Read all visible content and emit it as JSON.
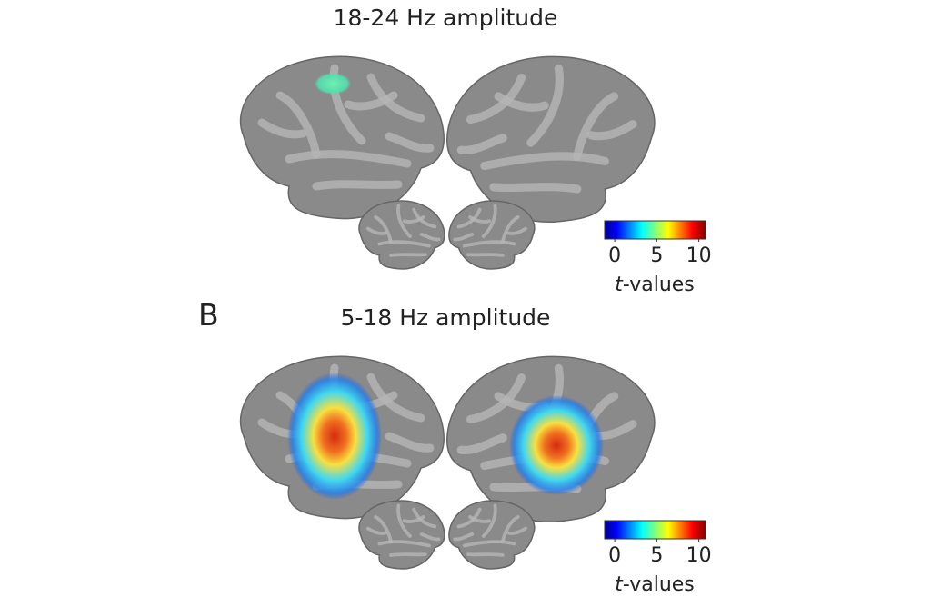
{
  "panels": [
    {
      "title": "18-24 Hz amplitude",
      "colorbar": {
        "colormap": "jet",
        "clim": [
          -1.2,
          10.8
        ],
        "ticks": [
          0,
          5,
          10
        ],
        "label_italic": "t",
        "label_rest": "-values"
      }
    },
    {
      "label": "B",
      "title": "5-18 Hz amplitude",
      "colorbar": {
        "colormap": "jet",
        "clim": [
          -1.2,
          10.8
        ],
        "ticks": [
          0,
          5,
          10
        ],
        "label_italic": "t",
        "label_rest": "-values"
      }
    }
  ]
}
